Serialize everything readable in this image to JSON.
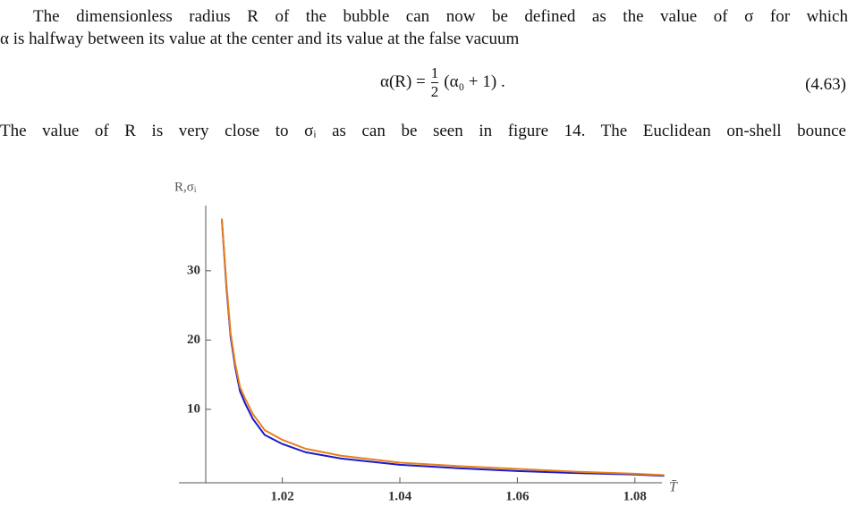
{
  "paragraph1": {
    "line1": "The dimensionless radius R of the bubble can now be defined as the value of σ for which",
    "line2": "α is halfway between its value at the center and its value at the false vacuum"
  },
  "equation": {
    "lhs": "α(R) =",
    "numerator": "1",
    "denominator": "2",
    "rhs": "(α₀ + 1) .",
    "number": "(4.63)"
  },
  "paragraph2": {
    "line1": "The value of R is very close to σᵢ as can be seen in figure 14. The Euclidean on-shell bounce"
  },
  "chart_data": {
    "type": "line",
    "y_label": "R,σᵢ",
    "x_label": "T̄",
    "x": [
      1.0097,
      1.0105,
      1.0112,
      1.012,
      1.0128,
      1.0137,
      1.015,
      1.017,
      1.02,
      1.024,
      1.03,
      1.04,
      1.05,
      1.06,
      1.07,
      1.08,
      1.085
    ],
    "series": [
      {
        "color": "#1a1acc",
        "values": [
          37.5,
          27.5,
          20.5,
          16,
          12.6,
          10.8,
          8.6,
          6.3,
          5.0,
          3.8,
          2.9,
          2.0,
          1.5,
          1.1,
          0.8,
          0.6,
          0.4
        ]
      },
      {
        "color": "#e8801a",
        "values": [
          37.5,
          28,
          21,
          16.5,
          13.2,
          11.5,
          9.3,
          7.0,
          5.6,
          4.3,
          3.3,
          2.3,
          1.8,
          1.4,
          1.0,
          0.7,
          0.5
        ]
      }
    ],
    "xlim": [
      1.0024,
      1.0846
    ],
    "ylim": [
      -0.6,
      39.4
    ],
    "xticks": [
      1.02,
      1.04,
      1.06,
      1.08
    ],
    "yticks": [
      10,
      20,
      30
    ]
  }
}
